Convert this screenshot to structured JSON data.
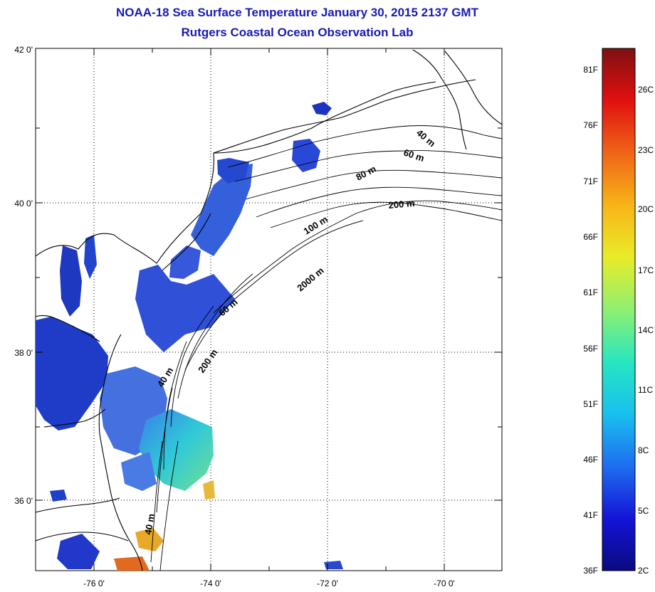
{
  "title": "NOAA-18 Sea Surface Temperature January 30, 2015 2137 GMT",
  "subtitle": "Rutgers Coastal Ocean Observation Lab",
  "map": {
    "lon_labels": [
      "-76 0'",
      "-74 0'",
      "-72 0'",
      "-70 0'"
    ],
    "lat_labels": [
      "42 0'",
      "40 0'",
      "38 0'",
      "36 0'"
    ],
    "contour_labels": [
      "40 m",
      "60 m",
      "80 m",
      "200 m",
      "100 m",
      "2000 m",
      "60 m",
      "40 m",
      "200 m",
      "40 m"
    ],
    "colors": {
      "land_line": "#000000",
      "cold": "#1f3fd0",
      "warm": "#e8b020"
    }
  },
  "colorbar": {
    "fahrenheit": [
      "81F",
      "76F",
      "71F",
      "66F",
      "61F",
      "56F",
      "51F",
      "46F",
      "41F",
      "36F"
    ],
    "celsius": [
      "26C",
      "23C",
      "20C",
      "17C",
      "14C",
      "11C",
      "8C",
      "5C",
      "2C"
    ],
    "gradient": [
      "#0a0a80",
      "#1414d8",
      "#1e6ef0",
      "#18c0ee",
      "#28e6c0",
      "#8ff070",
      "#e8ec28",
      "#f8b418",
      "#f06418",
      "#e01010",
      "#801010"
    ]
  }
}
